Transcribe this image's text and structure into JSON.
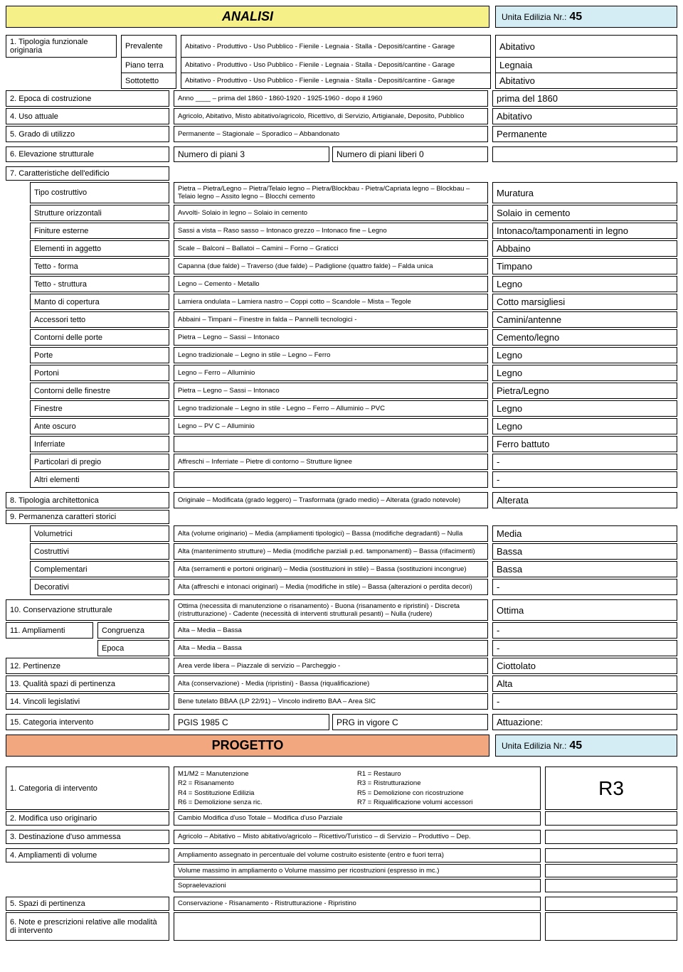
{
  "header": {
    "analisi": "ANALISI",
    "unita_label": "Unita Edilizia Nr.:",
    "unita_num": "45"
  },
  "s1": {
    "title": "1. Tipologia funzionale originaria",
    "rows": [
      {
        "sub": "Prevalente",
        "opt": "Abitativo - Produttivo - Uso Pubblico - Fienile - Legnaia - Stalla - Depositi/cantine - Garage",
        "val": "Abitativo"
      },
      {
        "sub": "Piano terra",
        "opt": "Abitativo - Produttivo - Uso Pubblico - Fienile - Legnaia - Stalla - Depositi/cantine - Garage",
        "val": "Legnaia"
      },
      {
        "sub": "Sottotetto",
        "opt": "Abitativo - Produttivo - Uso Pubblico - Fienile - Legnaia - Stalla - Depositi/cantine - Garage",
        "val": "Abitativo"
      }
    ]
  },
  "s2": {
    "lbl": "2. Epoca di costruzione",
    "opt": "Anno ____  –  prima del 1860   -   1860-1920   -   1925-1960   -   dopo il 1960",
    "val": "prima del 1860"
  },
  "s4": {
    "lbl": "4. Uso attuale",
    "opt": "Agricolo, Abitativo, Misto abitativo/agricolo, Ricettivo, di Servizio, Artigianale, Deposito, Pubblico",
    "val": "Abitativo"
  },
  "s5": {
    "lbl": "5. Grado di utilizzo",
    "opt": "Permanente – Stagionale – Sporadico – Abbandonato",
    "val": "Permanente"
  },
  "s6": {
    "lbl": "6. Elevazione strutturale",
    "opt1": "Numero di piani  3",
    "opt2": "Numero di piani liberi  0",
    "val": ""
  },
  "s7": {
    "title": "7. Caratteristiche dell'edificio",
    "rows": [
      {
        "lbl": "Tipo costruttivo",
        "opt": "Pietra – Pietra/Legno – Pietra/Telaio legno – Pietra/Blockbau  -  Pietra/Capriata legno – Blockbau – Telaio legno – Assito legno – Blocchi cemento",
        "val": "Muratura"
      },
      {
        "lbl": "Strutture orizzontali",
        "opt": "Avvolti- Solaio in legno – Solaio in cemento",
        "val": "Solaio in cemento"
      },
      {
        "lbl": "Finiture esterne",
        "opt": "Sassi a vista – Raso sasso – Intonaco grezzo – Intonaco fine – Legno",
        "val": "Intonaco/tamponamenti in legno"
      },
      {
        "lbl": "Elementi in aggetto",
        "opt": "Scale – Balconi – Ballatoi – Camini – Forno – Graticci",
        "val": "Abbaino"
      },
      {
        "lbl": "Tetto - forma",
        "opt": "Capanna (due falde) – Traverso (due falde) – Padiglione (quattro falde) – Falda unica",
        "val": "Timpano"
      },
      {
        "lbl": "Tetto - struttura",
        "opt": "Legno – Cemento - Metallo",
        "val": "Legno"
      },
      {
        "lbl": "Manto di copertura",
        "opt": "Lamiera ondulata – Lamiera nastro – Coppi cotto – Scandole – Mista – Tegole",
        "val": "Cotto marsigliesi"
      },
      {
        "lbl": "Accessori tetto",
        "opt": "Abbaini – Timpani – Finestre in falda – Pannelli tecnologici -",
        "val": "Camini/antenne"
      },
      {
        "lbl": "Contorni delle porte",
        "opt": "Pietra – Legno – Sassi – Intonaco",
        "val": "Cemento/legno"
      },
      {
        "lbl": "Porte",
        "opt": "Legno tradizionale – Legno in stile – Legno – Ferro",
        "val": "Legno"
      },
      {
        "lbl": "Portoni",
        "opt": "Legno – Ferro – Alluminio",
        "val": "Legno"
      },
      {
        "lbl": "Contorni delle finestre",
        "opt": "Pietra – Legno – Sassi – Intonaco",
        "val": "Pietra/Legno"
      },
      {
        "lbl": "Finestre",
        "opt": "Legno tradizionale – Legno in stile - Legno – Ferro – Alluminio – PVC",
        "val": "Legno"
      },
      {
        "lbl": "Ante oscuro",
        "opt": "Legno – PV C – Alluminio",
        "val": "Legno"
      },
      {
        "lbl": "Inferriate",
        "opt": "",
        "val": "Ferro battuto"
      },
      {
        "lbl": "Particolari di pregio",
        "opt": "Affreschi – Inferriate – Pietre di contorno – Strutture lignee",
        "val": "-"
      },
      {
        "lbl": "Altri elementi",
        "opt": "",
        "val": "-"
      }
    ]
  },
  "s8": {
    "lbl": "8. Tipologia architettonica",
    "opt": "Originale – Modificata (grado leggero) – Trasformata (grado medio) – Alterata (grado notevole)",
    "val": "Alterata"
  },
  "s9": {
    "title": "9. Permanenza caratteri storici",
    "rows": [
      {
        "lbl": "Volumetrici",
        "opt": "Alta (volume originario) – Media (ampliamenti tipologici) – Bassa (modifiche degradanti) – Nulla",
        "val": "Media"
      },
      {
        "lbl": "Costruttivi",
        "opt": "Alta (mantenimento strutture) – Media (modifiche parziali p.ed. tamponamenti) – Bassa (rifacimenti)",
        "val": "Bassa"
      },
      {
        "lbl": "Complementari",
        "opt": "Alta (serramenti e portoni originari) – Media (sostituzioni in stile) – Bassa (sostituzioni incongrue)",
        "val": "Bassa"
      },
      {
        "lbl": "Decorativi",
        "opt": "Alta (affreschi e intonaci originari) – Media (modifiche in stile) – Bassa (alterazioni o perdita decori)",
        "val": "-"
      }
    ]
  },
  "s10": {
    "lbl": "10. Conservazione strutturale",
    "opt": "Ottima (necessita di manutenzione o risanamento) -  Buona (risanamento e ripristini)   - Discreta (ristrutturazione) -  Cadente (necessità di interventi strutturali pesanti) – Nulla (rudere)",
    "val": "Ottima"
  },
  "s11": {
    "lbl": "11. Ampliamenti",
    "sub1": "Congruenza",
    "opt1": "Alta  – Media  – Bassa",
    "val1": "-",
    "sub2": "Epoca",
    "opt2": "Alta  – Media  – Bassa",
    "val2": "-"
  },
  "s12": {
    "lbl": "12. Pertinenze",
    "opt": "Area verde libera – Piazzale di servizio – Parcheggio -",
    "val": "Ciottolato"
  },
  "s13": {
    "lbl": "13. Qualità spazi di pertinenza",
    "opt": "Alta (conservazione) - Media (ripristini) - Bassa (riqualificazione)",
    "val": "Alta"
  },
  "s14": {
    "lbl": "14. Vincoli legislativi",
    "opt": "Bene tutelato BBAA (LP 22/91) – Vincolo indiretto BAA – Area SIC",
    "val": "-"
  },
  "s15": {
    "lbl": "15. Categoria intervento",
    "opt1": "PGIS 1985   C",
    "opt2": "PRG in vigore  C",
    "val": "Attuazione:"
  },
  "progetto": {
    "title": "PROGETTO",
    "unita_label": "Unita Edilizia Nr.:",
    "unita_num": "45"
  },
  "p1": {
    "lbl": "1. Categoria di intervento",
    "col1": "M1/M2  = Manutenzione\n R2 = Risanamento\n R4 = Sostituzione Edilizia\n R6 = Demolizione senza ric.",
    "col2": "R1 = Restauro\n R3 = Ristrutturazione\n R5 = Demolizione con ricostruzione\n R7 = Riqualificazione volumi accessori",
    "val": "R3"
  },
  "p2": {
    "lbl": "2. Modifica uso originario",
    "opt": "Cambio Modifica d'uso Totale – Modifica d'uso Parziale",
    "val": ""
  },
  "p3": {
    "lbl": "3. Destinazione d'uso ammessa",
    "opt": "Agricolo – Abitativo – Misto abitativo/agricolo – Ricettivo/Turistico – di Servizio – Produttivo – Dep.",
    "val": ""
  },
  "p4": {
    "lbl": "4. Ampliamenti di volume",
    "opt1": "Ampliamento assegnato in percentuale del volume costruito esistente (entro e fuori terra)",
    "opt2": "Volume massimo in ampliamento o Volume massimo per ricostruzioni (espresso in mc.)",
    "opt3": "Sopraelevazioni"
  },
  "p5": {
    "lbl": "5. Spazi di pertinenza",
    "opt": "Conservazione -  Risanamento  -  Ristrutturazione  -  Ripristino",
    "val": ""
  },
  "p6": {
    "lbl": "6. Note e prescrizioni relative alle modalità di intervento",
    "opt": "",
    "val": ""
  }
}
